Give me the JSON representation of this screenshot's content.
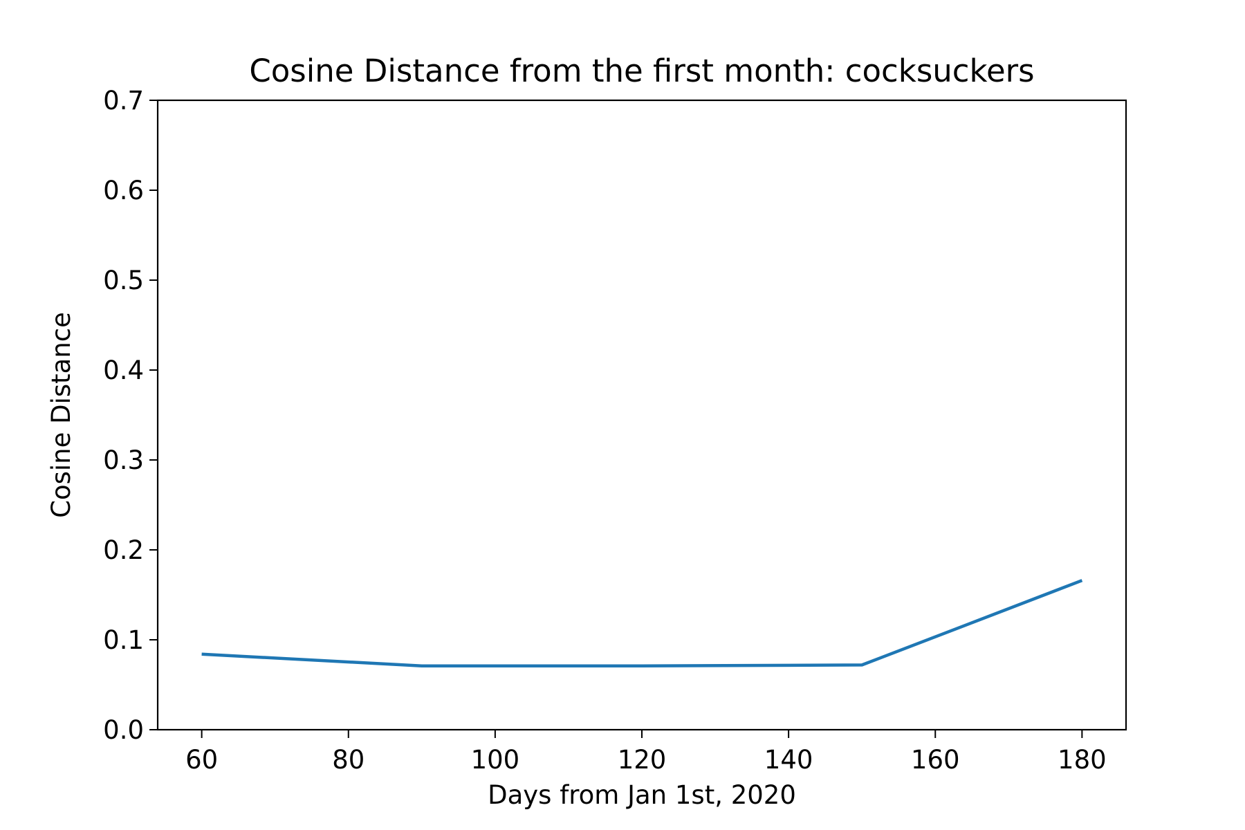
{
  "chart_data": {
    "type": "line",
    "title": "Cosine Distance from the first month: cocksuckers",
    "xlabel": "Days from Jan 1st, 2020",
    "ylabel": "Cosine Distance",
    "xlim": [
      54,
      186
    ],
    "ylim": [
      0.0,
      0.7
    ],
    "x_ticks": [
      60,
      80,
      100,
      120,
      140,
      160,
      180
    ],
    "x_tick_labels": [
      "60",
      "80",
      "100",
      "120",
      "140",
      "160",
      "180"
    ],
    "y_ticks": [
      0.0,
      0.1,
      0.2,
      0.3,
      0.4,
      0.5,
      0.6,
      0.7
    ],
    "y_tick_labels": [
      "0.0",
      "0.1",
      "0.2",
      "0.3",
      "0.4",
      "0.5",
      "0.6",
      "0.7"
    ],
    "grid": false,
    "series": [
      {
        "x": [
          60,
          90,
          120,
          150,
          180
        ],
        "values": [
          0.084,
          0.071,
          0.071,
          0.072,
          0.166
        ],
        "color": "#1f77b4"
      }
    ]
  }
}
